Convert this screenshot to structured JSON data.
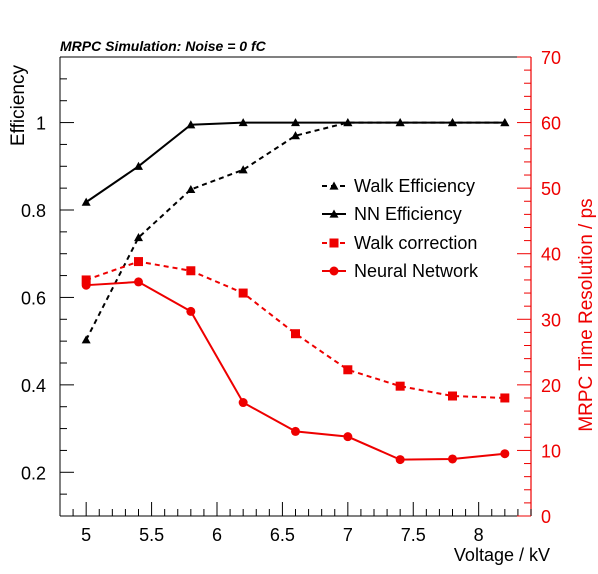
{
  "chart_data": {
    "type": "line",
    "title": "MRPC Simulation: Noise = 0 fC",
    "xlabel": "Voltage / kV",
    "ylabel_left": "Efficiency",
    "ylabel_right": "MRPC Time Resolution / ps",
    "xlim": [
      4.8,
      8.4
    ],
    "ylim_left": [
      0.1,
      1.15
    ],
    "ylim_right": [
      0,
      70
    ],
    "x_ticks": [
      5,
      5.5,
      6,
      6.5,
      7,
      7.5,
      8
    ],
    "x_tick_labels": [
      "5",
      "5.5",
      "6",
      "6.5",
      "7",
      "7.5",
      "8"
    ],
    "y_left_ticks": [
      0.2,
      0.4,
      0.6,
      0.8,
      1
    ],
    "y_left_tick_labels": [
      "0.2",
      "0.4",
      "0.6",
      "0.8",
      "1"
    ],
    "y_right_ticks": [
      0,
      10,
      20,
      30,
      40,
      50,
      60,
      70
    ],
    "y_right_tick_labels": [
      "0",
      "10",
      "20",
      "30",
      "40",
      "50",
      "60",
      "70"
    ],
    "grid": false,
    "legend_position": "center-right",
    "series": [
      {
        "name": "Walk Efficiency",
        "axis": "left",
        "color": "#000000",
        "dashed": true,
        "marker": "triangle",
        "x": [
          5,
          5.4,
          5.8,
          6.2,
          6.6,
          7,
          7.4,
          7.8,
          8.2
        ],
        "y": [
          0.503,
          0.737,
          0.847,
          0.892,
          0.97,
          1.0,
          1.0,
          1.0,
          1.0
        ]
      },
      {
        "name": "NN Efficiency",
        "axis": "left",
        "color": "#000000",
        "dashed": false,
        "marker": "triangle",
        "x": [
          5,
          5.4,
          5.8,
          6.2,
          6.6,
          7,
          7.4,
          7.8,
          8.2
        ],
        "y": [
          0.818,
          0.9,
          0.995,
          1.0,
          1.0,
          1.0,
          1.0,
          1.0,
          1.0
        ]
      },
      {
        "name": "Walk correction",
        "axis": "right",
        "color": "#ee0000",
        "dashed": true,
        "marker": "square",
        "x": [
          5,
          5.4,
          5.8,
          6.2,
          6.6,
          7,
          7.4,
          7.8,
          8.2
        ],
        "y": [
          36.0,
          38.8,
          37.4,
          34.0,
          27.8,
          22.3,
          19.8,
          18.3,
          18.0
        ]
      },
      {
        "name": "Neural Network",
        "axis": "right",
        "color": "#ee0000",
        "dashed": false,
        "marker": "circle",
        "x": [
          5,
          5.4,
          5.8,
          6.2,
          6.6,
          7,
          7.4,
          7.8,
          8.2
        ],
        "y": [
          35.2,
          35.7,
          31.2,
          17.3,
          12.9,
          12.1,
          8.6,
          8.7,
          9.5
        ]
      }
    ]
  }
}
